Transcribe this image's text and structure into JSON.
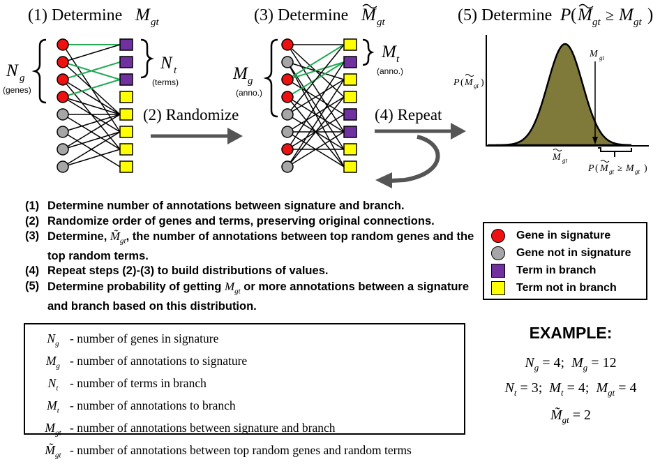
{
  "panels": {
    "step1_title": "(1) Determine",
    "step3_title": "(3) Determine",
    "step5_title": "(5) Determine",
    "randomize_label": "(2) Randomize",
    "repeat_label": "(4) Repeat"
  },
  "symbols": {
    "N": "N",
    "M": "M",
    "P": "P",
    "g": "g",
    "t": "t",
    "gt": "gt"
  },
  "annotations": {
    "genes": "(genes)",
    "terms": "(terms)",
    "anno_left": "(anno.)",
    "anno_right": "(anno.)"
  },
  "steps": [
    {
      "num": "(1)",
      "text": "Determine number of annotations between signature and branch."
    },
    {
      "num": "(2)",
      "text": "Randomize order of genes and terms, preserving original connections."
    },
    {
      "num": "(3)",
      "text_before": "Determine,",
      "symbol": "M̃",
      "sub": "gt",
      "text_after": ", the number of annotations between top random genes and the top random terms."
    },
    {
      "num": "(4)",
      "text": "Repeat steps (2)-(3) to build distributions of values."
    },
    {
      "num": "(5)",
      "text_before": "Determine probability of getting",
      "symbol": "M",
      "sub": "gt",
      "text_after": "or more annotations between a signature and branch based on this distribution."
    }
  ],
  "legend": [
    {
      "label": "Gene in signature",
      "color": "#ee1111",
      "shape": "circle"
    },
    {
      "label": "Gene not in signature",
      "color": "#a6a6a6",
      "shape": "circle"
    },
    {
      "label": "Term in branch",
      "color": "#7030a0",
      "shape": "square"
    },
    {
      "label": "Term not in branch",
      "color": "#ffff00",
      "shape": "square"
    }
  ],
  "definitions": [
    {
      "sym": "N",
      "sub": "g",
      "tilde": false,
      "text": "- number of genes in signature"
    },
    {
      "sym": "M",
      "sub": "g",
      "tilde": false,
      "text": "- number of annotations to signature"
    },
    {
      "sym": "N",
      "sub": "t",
      "tilde": false,
      "text": "- number of terms in branch"
    },
    {
      "sym": "M",
      "sub": "t",
      "tilde": false,
      "text": "- number of annotations to branch"
    },
    {
      "sym": "M",
      "sub": "gt",
      "tilde": false,
      "text": "- number of annotations between signature and branch"
    },
    {
      "sym": "M̃",
      "sub": "gt",
      "tilde": true,
      "text": "- number of annotations between top random genes and random terms"
    }
  ],
  "example": {
    "title": "EXAMPLE:",
    "line1": {
      "a_sym": "N",
      "a_sub": "g",
      "a_val": "4",
      "b_sym": "M",
      "b_sub": "g",
      "b_val": "12"
    },
    "line2": {
      "a_sym": "N",
      "a_sub": "t",
      "a_val": "3",
      "b_sym": "M",
      "b_sub": "t",
      "b_val": "4",
      "c_sym": "M",
      "c_sub": "gt",
      "c_val": "4"
    },
    "line3": {
      "sym": "M̃",
      "sub": "gt",
      "val": "2"
    }
  },
  "colors": {
    "gene_in": "#ee1111",
    "gene_out": "#a6a6a6",
    "term_in": "#7030a0",
    "term_out": "#ffff00",
    "edge_signature": "#22aa55",
    "edge_default": "#000000",
    "arrow": "#555555",
    "distribution_fill": "#7f7a3a"
  }
}
